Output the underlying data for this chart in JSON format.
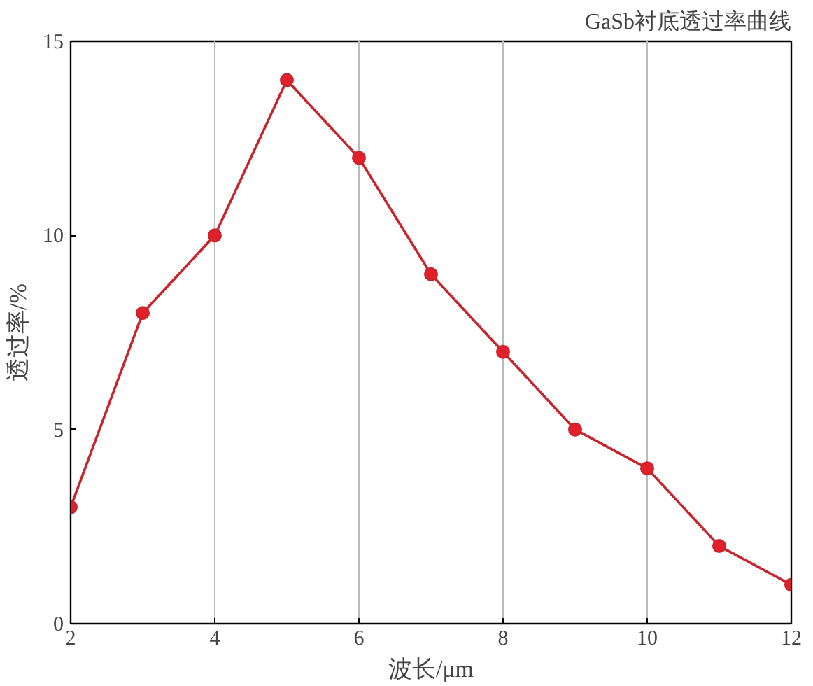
{
  "chart_data": {
    "type": "line",
    "title": "GaSb衬底透过率曲线",
    "xlabel": "波长/μm",
    "ylabel": "透过率/%",
    "x": [
      2,
      3,
      4,
      5,
      6,
      7,
      8,
      9,
      10,
      11,
      12
    ],
    "series": [
      {
        "color": "#c8242c",
        "values": [
          3,
          8,
          10,
          14,
          12,
          9,
          7,
          5,
          4,
          2,
          1
        ]
      }
    ],
    "xlim": [
      2,
      12
    ],
    "xticks": [
      2,
      4,
      6,
      8,
      10,
      12
    ],
    "ylim": [
      0,
      15
    ],
    "yticks": [
      0,
      5,
      10,
      15
    ],
    "grid": "x",
    "marker": "circle",
    "line_style": "solid"
  }
}
